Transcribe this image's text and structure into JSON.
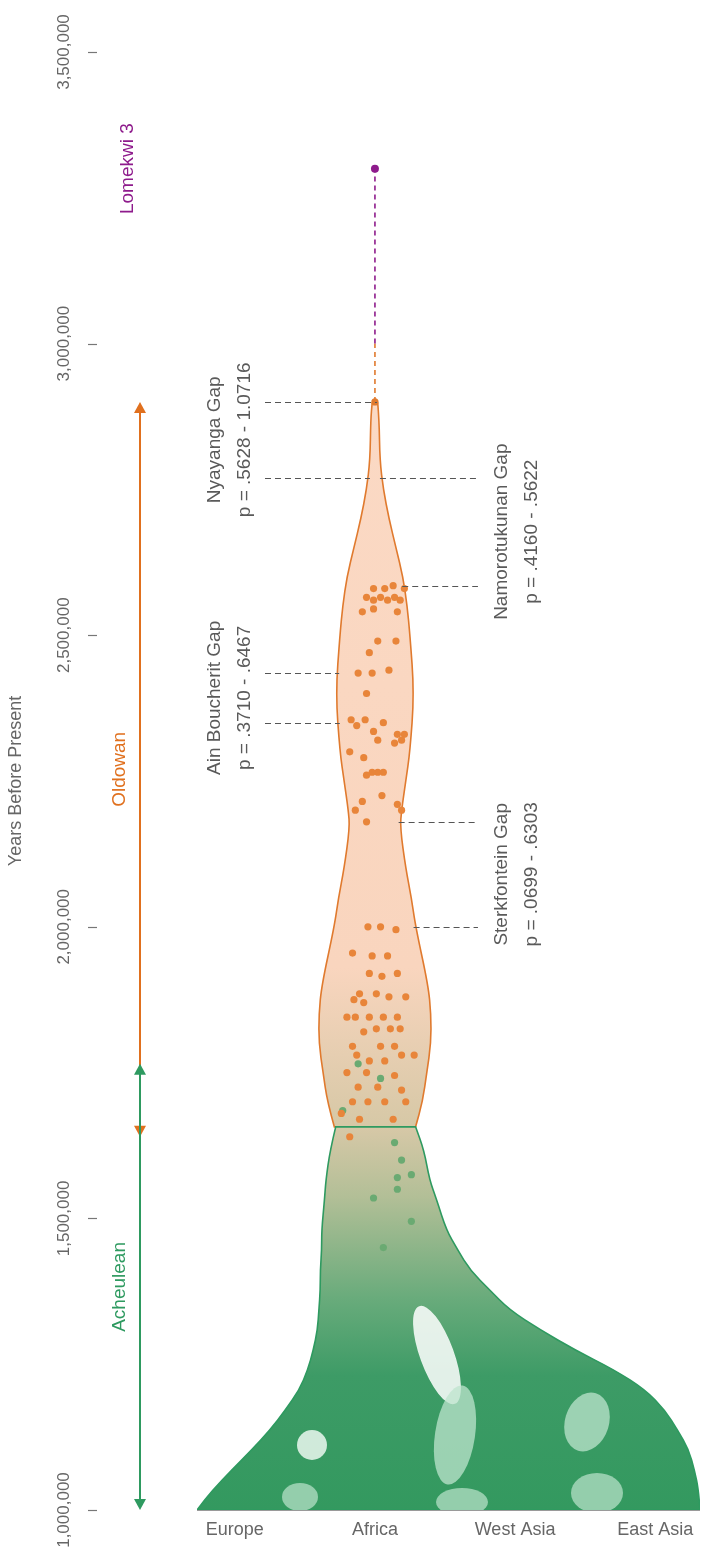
{
  "chart_data": {
    "type": "scatter",
    "ylabel": "Years Before Present",
    "xlim": [
      -0.27,
      3.32
    ],
    "xticks": [
      {
        "value": 0,
        "label": "Europe"
      },
      {
        "value": 1,
        "label": "Africa"
      },
      {
        "value": 2,
        "label": "West Asia"
      },
      {
        "value": 3,
        "label": "East Asia"
      }
    ],
    "ylim": [
      1000000,
      3500000
    ],
    "yticks": [
      {
        "value": 1000000,
        "label": "1,000,000"
      },
      {
        "value": 1500000,
        "label": "1,500,000"
      },
      {
        "value": 2000000,
        "label": "2,000,000"
      },
      {
        "value": 2500000,
        "label": "2,500,000"
      },
      {
        "value": 3000000,
        "label": "3,000,000"
      },
      {
        "value": 3500000,
        "label": "3,500,000"
      }
    ],
    "grid": false,
    "series": [
      {
        "name": "Oldowan",
        "color": "#e8853a",
        "x": [
          0.99,
          1.07,
          1.13,
          1.21,
          1.14,
          1.04,
          0.99,
          0.94,
          1.18,
          1.09,
          0.91,
          1.16,
          0.99,
          1.02,
          1.15,
          0.96,
          1.1,
          0.88,
          0.98,
          0.94,
          0.93,
          0.83,
          1.06,
          0.87,
          0.99,
          1.16,
          1.21,
          1.02,
          1.19,
          1.14,
          0.82,
          0.92,
          1.02,
          1.06,
          0.98,
          0.94,
          1.05,
          0.91,
          1.16,
          0.86,
          1.19,
          0.94,
          0.95,
          1.04,
          1.15,
          0.84,
          0.98,
          1.09,
          0.96,
          1.16,
          1.05,
          0.89,
          1.01,
          1.1,
          1.22,
          0.85,
          0.92,
          0.8,
          0.86,
          0.96,
          1.06,
          1.16,
          0.92,
          1.01,
          1.11,
          1.18,
          0.84,
          1.04,
          1.14,
          0.87,
          1.19,
          1.28,
          0.96,
          1.07,
          0.8,
          0.94,
          1.14,
          0.88,
          1.02,
          1.19,
          0.84,
          0.95,
          1.07,
          1.22,
          0.76,
          0.89,
          1.13,
          0.82
        ],
        "values": [
          2580000,
          2580000,
          2585000,
          2580000,
          2565000,
          2565000,
          2560000,
          2565000,
          2560000,
          2560000,
          2540000,
          2540000,
          2545000,
          2490000,
          2490000,
          2470000,
          2440000,
          2435000,
          2435000,
          2400000,
          2355000,
          2355000,
          2350000,
          2345000,
          2335000,
          2330000,
          2330000,
          2320000,
          2320000,
          2315000,
          2300000,
          2290000,
          2265000,
          2265000,
          2265000,
          2260000,
          2225000,
          2215000,
          2210000,
          2200000,
          2200000,
          2180000,
          2000000,
          2000000,
          1995000,
          1955000,
          1950000,
          1950000,
          1920000,
          1920000,
          1915000,
          1885000,
          1885000,
          1880000,
          1880000,
          1875000,
          1870000,
          1845000,
          1845000,
          1845000,
          1845000,
          1845000,
          1820000,
          1825000,
          1825000,
          1825000,
          1795000,
          1795000,
          1795000,
          1780000,
          1780000,
          1780000,
          1770000,
          1770000,
          1750000,
          1750000,
          1745000,
          1725000,
          1725000,
          1720000,
          1700000,
          1700000,
          1700000,
          1700000,
          1680000,
          1670000,
          1670000,
          1640000
        ]
      },
      {
        "name": "Acheulean",
        "color": "#6aaa72",
        "x": [
          0.77,
          0.88,
          1.04,
          1.14,
          1.19,
          1.26,
          1.16,
          1.16,
          0.99,
          1.26,
          1.06
        ],
        "values": [
          1685000,
          1765000,
          1740000,
          1630000,
          1600000,
          1575000,
          1570000,
          1550000,
          1535000,
          1495000,
          1450000
        ]
      }
    ],
    "periods": [
      {
        "name": "Oldowan",
        "color": "#e0701e",
        "range": [
          1640000,
          2900000
        ]
      },
      {
        "name": "Acheulean",
        "color": "#2e9a60",
        "range": [
          1000000,
          1765000
        ]
      }
    ],
    "oldowan_outline": {
      "color": "#e07a2e",
      "center": 1,
      "y": [
        2898000,
        2870000,
        2800000,
        2750000,
        2700000,
        2650000,
        2600000,
        2550000,
        2500000,
        2400000,
        2300000,
        2250000,
        2200000,
        2170000,
        2100000,
        2050000,
        2000000,
        1900000,
        1850000,
        1800000,
        1750000,
        1700000,
        1657000
      ],
      "half_width": [
        0.02,
        0.03,
        0.035,
        0.06,
        0.1,
        0.15,
        0.2,
        0.23,
        0.25,
        0.28,
        0.25,
        0.22,
        0.19,
        0.18,
        0.22,
        0.26,
        0.29,
        0.38,
        0.4,
        0.4,
        0.37,
        0.34,
        0.29
      ]
    },
    "acheulean_outline": {
      "color": "#2e9a60",
      "y": [
        1657000,
        1617000,
        1566000,
        1532000,
        1480000,
        1446000,
        1411000,
        1377000,
        1343000,
        1309000,
        1274000,
        1240000,
        1206000,
        1171000,
        1137000,
        1103000,
        1069000,
        1034000,
        1000000
      ],
      "left": [
        0.72,
        0.68,
        0.65,
        0.64,
        0.62,
        0.62,
        0.61,
        0.61,
        0.6,
        0.59,
        0.56,
        0.52,
        0.46,
        0.36,
        0.25,
        0.12,
        -0.02,
        -0.16,
        -0.27
      ],
      "right": [
        1.29,
        1.35,
        1.39,
        1.44,
        1.51,
        1.59,
        1.68,
        1.82,
        1.96,
        2.18,
        2.43,
        2.71,
        2.93,
        3.07,
        3.16,
        3.24,
        3.28,
        3.31,
        3.32
      ]
    },
    "gaps": [
      {
        "name": "Nyayanga Gap",
        "p": "p = .5628 - 1.0716",
        "range": [
          2770000,
          2900000
        ]
      },
      {
        "name": "Namorotukunan Gap",
        "p": "p = .4160 - .5622",
        "range": [
          2585000,
          2770000
        ]
      },
      {
        "name": "Ain Boucherit Gap",
        "p": "p = .3710 - .6467",
        "range": [
          2350000,
          2435000
        ]
      },
      {
        "name": "Sterkfontein Gap",
        "p": "p = .0699 - .6303",
        "range": [
          2000000,
          2180000
        ]
      }
    ],
    "lomekwi": {
      "label": "Lomekwi 3",
      "color": "#8e1b8c",
      "link": [
        2900000,
        3000000,
        3300000
      ]
    }
  }
}
